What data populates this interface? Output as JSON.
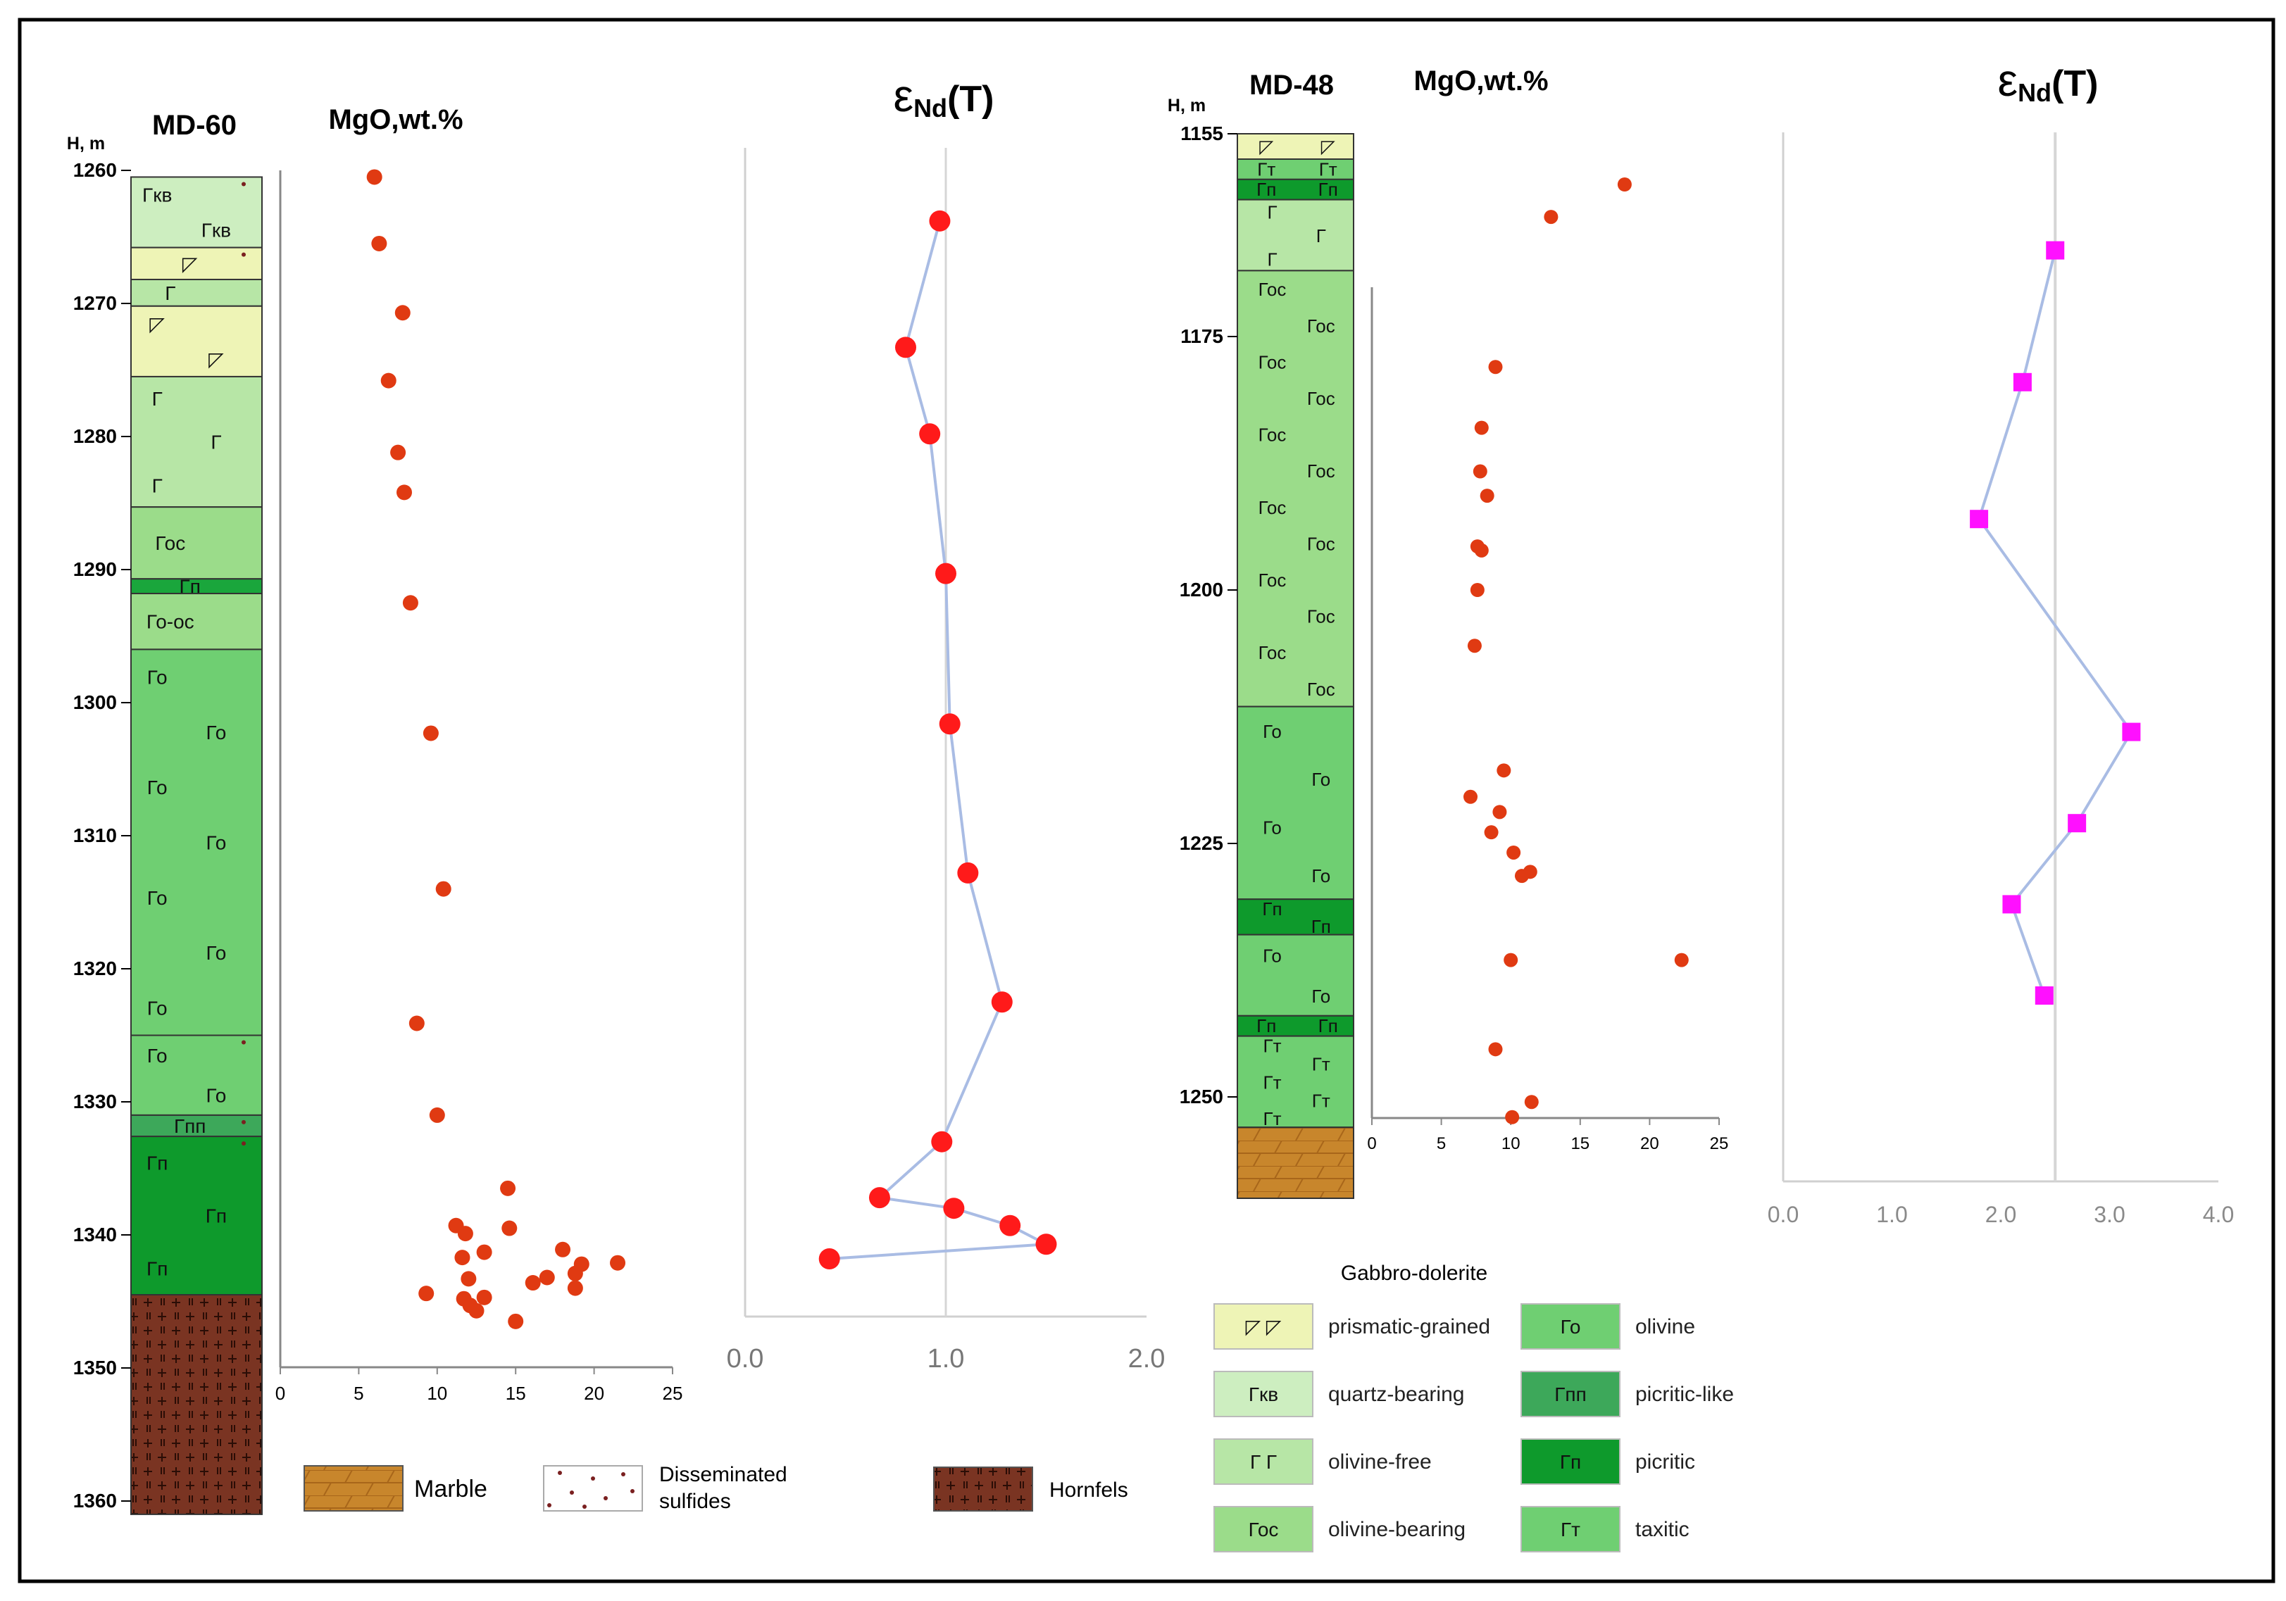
{
  "left_column": {
    "well": "MD-60",
    "depth_unit": "H, m",
    "depth_ticks": [
      1260,
      1270,
      1280,
      1290,
      1300,
      1310,
      1320,
      1330,
      1340,
      1350,
      1360
    ],
    "depth_range": [
      1260,
      1360
    ],
    "layers": [
      {
        "top": 1260.5,
        "bottom": 1265.8,
        "fill": "#cdeec0",
        "labels": [
          {
            "text": "Гкв",
            "pos": "top-left"
          },
          {
            "text": "Гкв",
            "pos": "bottom-center"
          }
        ],
        "sulfides": true
      },
      {
        "top": 1265.8,
        "bottom": 1268.2,
        "fill": "#eef4b6",
        "labels": [
          {
            "text": "◸",
            "pos": "center"
          }
        ],
        "sulfides": true
      },
      {
        "top": 1268.2,
        "bottom": 1270.2,
        "fill": "#b7e6a6",
        "labels": [
          {
            "text": "Г",
            "pos": "left"
          }
        ]
      },
      {
        "top": 1270.2,
        "bottom": 1275.5,
        "fill": "#eef4b6",
        "labels": [
          {
            "text": "◸",
            "pos": "top-left"
          },
          {
            "text": "◸",
            "pos": "bottom-right"
          }
        ]
      },
      {
        "top": 1275.5,
        "bottom": 1285.3,
        "fill": "#b7e6a6",
        "labels": [
          {
            "text": "Г",
            "pos": "top-left"
          },
          {
            "text": "Г",
            "pos": "middle-right"
          },
          {
            "text": "Г",
            "pos": "bottom-left"
          }
        ]
      },
      {
        "top": 1285.3,
        "bottom": 1290.7,
        "fill": "#9bdc8a",
        "labels": [
          {
            "text": "Гос",
            "pos": "center-left"
          }
        ]
      },
      {
        "top": 1290.7,
        "bottom": 1291.8,
        "fill": "#1aa63c",
        "labels": [
          {
            "text": "Гп",
            "pos": "center"
          }
        ]
      },
      {
        "top": 1291.8,
        "bottom": 1296.0,
        "fill": "#9bdc8a",
        "labels": [
          {
            "text": "Го-ос",
            "pos": "center-left"
          }
        ]
      },
      {
        "top": 1296.0,
        "bottom": 1325.0,
        "fill": "#6fcf72",
        "labels": [
          {
            "text": "Го",
            "pos": "r1"
          },
          {
            "text": "Го",
            "pos": "r2"
          },
          {
            "text": "Го",
            "pos": "r3"
          },
          {
            "text": "Го",
            "pos": "r4"
          },
          {
            "text": "Го",
            "pos": "r5"
          },
          {
            "text": "Го",
            "pos": "r6"
          },
          {
            "text": "Го",
            "pos": "r7"
          }
        ]
      },
      {
        "top": 1325.0,
        "bottom": 1331.0,
        "fill": "#6fcf72",
        "labels": [
          {
            "text": "Го",
            "pos": "left"
          },
          {
            "text": "Го",
            "pos": "right"
          }
        ],
        "sulfides": true
      },
      {
        "top": 1331.0,
        "bottom": 1332.6,
        "fill": "#3da85a",
        "labels": [
          {
            "text": "Гпп",
            "pos": "center"
          }
        ],
        "sulfides": true
      },
      {
        "top": 1332.6,
        "bottom": 1344.5,
        "fill": "#0e9a2c",
        "labels": [
          {
            "text": "Гп",
            "pos": "top-left"
          },
          {
            "text": "Гп",
            "pos": "middle-right"
          },
          {
            "text": "Гп",
            "pos": "bottom-left"
          }
        ],
        "sulfides": true
      },
      {
        "top": 1344.5,
        "bottom": 1361.0,
        "fill": "#7a3422",
        "labels": [],
        "hornfels": true
      }
    ],
    "mgo": {
      "title": "MgO,wt.%",
      "x_ticks": [
        0,
        5,
        10,
        15,
        20,
        25
      ],
      "x_range": [
        0,
        25
      ],
      "points": [
        [
          6.0,
          1260.5
        ],
        [
          6.3,
          1265.5
        ],
        [
          7.8,
          1270.7
        ],
        [
          6.9,
          1275.8
        ],
        [
          7.5,
          1281.2
        ],
        [
          7.9,
          1284.2
        ],
        [
          8.3,
          1292.5
        ],
        [
          9.6,
          1302.3
        ],
        [
          10.4,
          1314.0
        ],
        [
          8.7,
          1324.1
        ],
        [
          10.0,
          1331.0
        ],
        [
          14.5,
          1336.5
        ],
        [
          11.2,
          1339.3
        ],
        [
          11.8,
          1339.9
        ],
        [
          14.6,
          1339.5
        ],
        [
          13.0,
          1341.3
        ],
        [
          11.6,
          1341.7
        ],
        [
          18.0,
          1341.1
        ],
        [
          19.2,
          1342.2
        ],
        [
          21.5,
          1342.1
        ],
        [
          17.0,
          1343.2
        ],
        [
          18.8,
          1342.9
        ],
        [
          16.1,
          1343.6
        ],
        [
          12.0,
          1343.3
        ],
        [
          18.8,
          1344.0
        ],
        [
          9.3,
          1344.4
        ],
        [
          11.7,
          1344.8
        ],
        [
          13.0,
          1344.7
        ],
        [
          12.1,
          1345.3
        ],
        [
          12.5,
          1345.7
        ],
        [
          15.0,
          1346.5
        ]
      ]
    },
    "end": {
      "title_symbol": "ε",
      "title_sub": "Nd",
      "title_tail": "(T)",
      "x_ticks": [
        "0.0",
        "1.0",
        "2.0"
      ],
      "x_range": [
        0,
        2
      ],
      "points": [
        [
          0.97,
          1263.8
        ],
        [
          0.8,
          1273.3
        ],
        [
          0.92,
          1279.8
        ],
        [
          1.0,
          1290.3
        ],
        [
          1.02,
          1301.6
        ],
        [
          1.11,
          1312.8
        ],
        [
          1.28,
          1322.5
        ],
        [
          0.98,
          1333.0
        ],
        [
          0.67,
          1337.2
        ],
        [
          1.04,
          1338.0
        ],
        [
          1.32,
          1339.3
        ],
        [
          1.5,
          1340.7
        ],
        [
          0.42,
          1341.8
        ]
      ]
    }
  },
  "right_column": {
    "well": "MD-48",
    "depth_unit": "H, m",
    "depth_ticks": [
      1155,
      1175,
      1200,
      1225,
      1250
    ],
    "depth_range": [
      1155,
      1250
    ],
    "layers": [
      {
        "top": 1155.0,
        "bottom": 1157.5,
        "fill": "#eef4b6",
        "labels": [
          {
            "text": "◸",
            "pos": "left"
          },
          {
            "text": "◸",
            "pos": "right"
          }
        ]
      },
      {
        "top": 1157.5,
        "bottom": 1159.5,
        "fill": "#6fcf72",
        "labels": [
          {
            "text": "Гт",
            "pos": "left"
          },
          {
            "text": "Гт",
            "pos": "right"
          }
        ]
      },
      {
        "top": 1159.5,
        "bottom": 1161.5,
        "fill": "#0e9a2c",
        "labels": [
          {
            "text": "Гп",
            "pos": "left"
          },
          {
            "text": "Гп",
            "pos": "right"
          }
        ]
      },
      {
        "top": 1161.5,
        "bottom": 1168.5,
        "fill": "#b7e6a6",
        "labels": [
          {
            "text": "Г",
            "pos": "top-center"
          },
          {
            "text": "Г",
            "pos": "bottom-left"
          },
          {
            "text": "Г",
            "pos": "bottom-right"
          }
        ]
      },
      {
        "top": 1168.5,
        "bottom": 1211.5,
        "fill": "#9bdc8a",
        "labels": [
          {
            "text": "Гос",
            "pos": "r1"
          },
          {
            "text": "Гос",
            "pos": "r2"
          },
          {
            "text": "Гос",
            "pos": "r3"
          },
          {
            "text": "Гос",
            "pos": "r4"
          },
          {
            "text": "Гос",
            "pos": "r5"
          },
          {
            "text": "Гос",
            "pos": "r6"
          },
          {
            "text": "Гос",
            "pos": "r7"
          },
          {
            "text": "Гос",
            "pos": "r8"
          },
          {
            "text": "Гос",
            "pos": "r9"
          },
          {
            "text": "Гос",
            "pos": "r10"
          },
          {
            "text": "Гос",
            "pos": "r11"
          },
          {
            "text": "Гос",
            "pos": "r12"
          }
        ]
      },
      {
        "top": 1211.5,
        "bottom": 1230.5,
        "fill": "#6fcf72",
        "labels": [
          {
            "text": "Го",
            "pos": "r1"
          },
          {
            "text": "Го",
            "pos": "r2"
          },
          {
            "text": "Го",
            "pos": "r3"
          },
          {
            "text": "Го",
            "pos": "r4"
          }
        ]
      },
      {
        "top": 1230.5,
        "bottom": 1234.0,
        "fill": "#0e9a2c",
        "labels": [
          {
            "text": "Гп",
            "pos": "left"
          },
          {
            "text": "Гп",
            "pos": "right"
          }
        ]
      },
      {
        "top": 1234.0,
        "bottom": 1242.0,
        "fill": "#6fcf72",
        "labels": [
          {
            "text": "Го",
            "pos": "top-left"
          },
          {
            "text": "Го",
            "pos": "bottom-right"
          }
        ]
      },
      {
        "top": 1242.0,
        "bottom": 1244.0,
        "fill": "#0e9a2c",
        "labels": [
          {
            "text": "Гп",
            "pos": "left"
          },
          {
            "text": "Гп",
            "pos": "right"
          }
        ]
      },
      {
        "top": 1244.0,
        "bottom": 1253.0,
        "fill": "#6fcf72",
        "labels": [
          {
            "text": "Гт",
            "pos": "r1"
          },
          {
            "text": "Гт",
            "pos": "r2"
          },
          {
            "text": "Гт",
            "pos": "r3"
          },
          {
            "text": "Гт",
            "pos": "r4"
          },
          {
            "text": "Гт",
            "pos": "r5"
          }
        ]
      },
      {
        "top": 1253.0,
        "bottom": 1260.0,
        "fill": "#c8862c",
        "labels": [],
        "marble": true
      }
    ],
    "mgo": {
      "title": "MgO,wt.%",
      "x_ticks": [
        0,
        5,
        10,
        15,
        20,
        25
      ],
      "x_range": [
        0,
        25
      ],
      "points": [
        [
          18.2,
          1160.0
        ],
        [
          12.9,
          1163.2
        ],
        [
          8.9,
          1178.0
        ],
        [
          7.9,
          1184.0
        ],
        [
          7.8,
          1188.3
        ],
        [
          8.3,
          1190.7
        ],
        [
          7.6,
          1195.7
        ],
        [
          7.9,
          1196.1
        ],
        [
          7.6,
          1200.0
        ],
        [
          7.4,
          1205.5
        ],
        [
          9.5,
          1217.8
        ],
        [
          7.1,
          1220.4
        ],
        [
          9.2,
          1221.9
        ],
        [
          8.6,
          1223.9
        ],
        [
          10.2,
          1225.9
        ],
        [
          11.4,
          1227.8
        ],
        [
          10.8,
          1228.2
        ],
        [
          10.0,
          1236.5
        ],
        [
          22.3,
          1236.5
        ],
        [
          8.9,
          1245.3
        ],
        [
          11.5,
          1250.5
        ],
        [
          10.1,
          1252.0
        ]
      ]
    },
    "end": {
      "title_symbol": "ε",
      "title_sub": "Nd",
      "title_tail": "(T)",
      "x_ticks": [
        "0.0",
        "1.0",
        "2.0",
        "3.0",
        "4.0"
      ],
      "x_range": [
        0,
        4
      ],
      "points": [
        [
          2.5,
          1166.5
        ],
        [
          2.2,
          1179.5
        ],
        [
          1.8,
          1193.0
        ],
        [
          3.2,
          1214.0
        ],
        [
          2.7,
          1223.0
        ],
        [
          2.1,
          1231.0
        ],
        [
          2.4,
          1240.0
        ]
      ]
    }
  },
  "legend_bottom": {
    "marble": "Marble",
    "sulfides_line1": "Disseminated",
    "sulfides_line2": "sulfides",
    "hornfels": "Hornfels"
  },
  "legend_right": {
    "title": "Gabbro-dolerite",
    "items": [
      {
        "symbol": "◸  ◸",
        "label": "prismatic-grained",
        "fill": "#eef4b6"
      },
      {
        "symbol": "Го",
        "label": "olivine",
        "fill": "#6fcf72"
      },
      {
        "symbol": "Гкв",
        "label": "quartz-bearing",
        "fill": "#cdeec0"
      },
      {
        "symbol": "Гпп",
        "label": "picritic-like",
        "fill": "#3da85a"
      },
      {
        "symbol": "Г   Г",
        "label": "olivine-free",
        "fill": "#b7e6a6"
      },
      {
        "symbol": "Гп",
        "label": "picritic",
        "fill": "#0e9a2c"
      },
      {
        "symbol": "Гос",
        "label": "olivine-bearing",
        "fill": "#9bdc8a"
      },
      {
        "symbol": "Гт",
        "label": "taxitic",
        "fill": "#6fcf72"
      }
    ]
  },
  "colors": {
    "mgo_dot": "#e03a12",
    "end_left_dot": "#ff1a1a",
    "end_right_marker": "#ff10ff",
    "line": "#a9bce4",
    "hornfels": "#7a3422",
    "marble": "#c8862c"
  }
}
